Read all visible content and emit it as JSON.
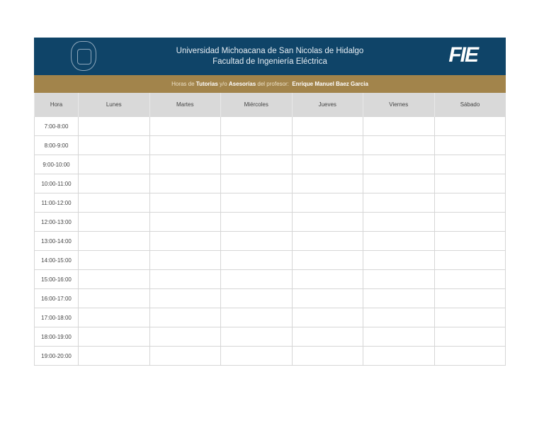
{
  "header": {
    "university": "Universidad Michoacana de San Nicolas de Hidalgo",
    "faculty": "Facultad de Ingeniería Eléctrica",
    "logo_text": "FIE"
  },
  "subheader": {
    "prefix": "Horas de",
    "tutorias": "Tutorias",
    "yo": "y/o",
    "asesorias": "Asesorías",
    "del": "del profesor:",
    "professor": "Enrique Manuel Baez Garcia"
  },
  "colors": {
    "banner": "#0f4468",
    "gold": "#a2844b",
    "header_row": "#d9d9d9"
  },
  "table": {
    "columns": [
      "Hora",
      "Lunes",
      "Martes",
      "Miércoles",
      "Jueves",
      "Viernes",
      "Sábado"
    ],
    "hours": [
      "7:00-8:00",
      "8:00-9:00",
      "9:00-10:00",
      "10:00-11:00",
      "11:00-12:00",
      "12:00-13:00",
      "13:00-14:00",
      "14:00-15:00",
      "15:00-16:00",
      "16:00-17:00",
      "17:00-18:00",
      "18:00-19:00",
      "19:00-20:00"
    ]
  }
}
